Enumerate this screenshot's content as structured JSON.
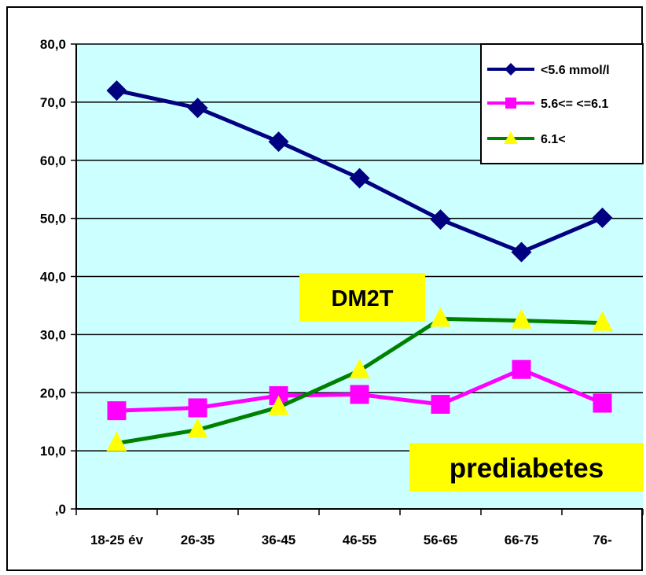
{
  "chart_data": {
    "type": "line",
    "categories": [
      "18-25 év",
      "26-35",
      "36-45",
      "46-55",
      "56-65",
      "66-75",
      "76-"
    ],
    "ylim": [
      0,
      80
    ],
    "yticks": [
      ",0",
      "10,0",
      "20,0",
      "30,0",
      "40,0",
      "50,0",
      "60,0",
      "70,0",
      "80,0"
    ],
    "grid": true,
    "legend_position": "top-right",
    "plot_background": "#ccffff",
    "series": [
      {
        "name": "<5.6 mmol/l",
        "color": "#000080",
        "marker": "diamond",
        "values": [
          72.0,
          69.0,
          63.2,
          56.9,
          49.8,
          44.2,
          50.1
        ]
      },
      {
        "name": "5.6<= <=6.1",
        "color": "#ff00ff",
        "marker": "square",
        "values": [
          16.9,
          17.4,
          19.5,
          19.7,
          18.0,
          24.0,
          18.2
        ]
      },
      {
        "name": "6.1<",
        "color": "#008000",
        "marker": "triangle",
        "marker_color": "#ffff00",
        "values": [
          11.3,
          13.6,
          17.5,
          23.8,
          32.7,
          32.4,
          32.0
        ]
      }
    ],
    "annotations": [
      {
        "text": "DM2T",
        "background": "#ffff00"
      },
      {
        "text": "prediabetes",
        "background": "#ffff00"
      }
    ]
  }
}
